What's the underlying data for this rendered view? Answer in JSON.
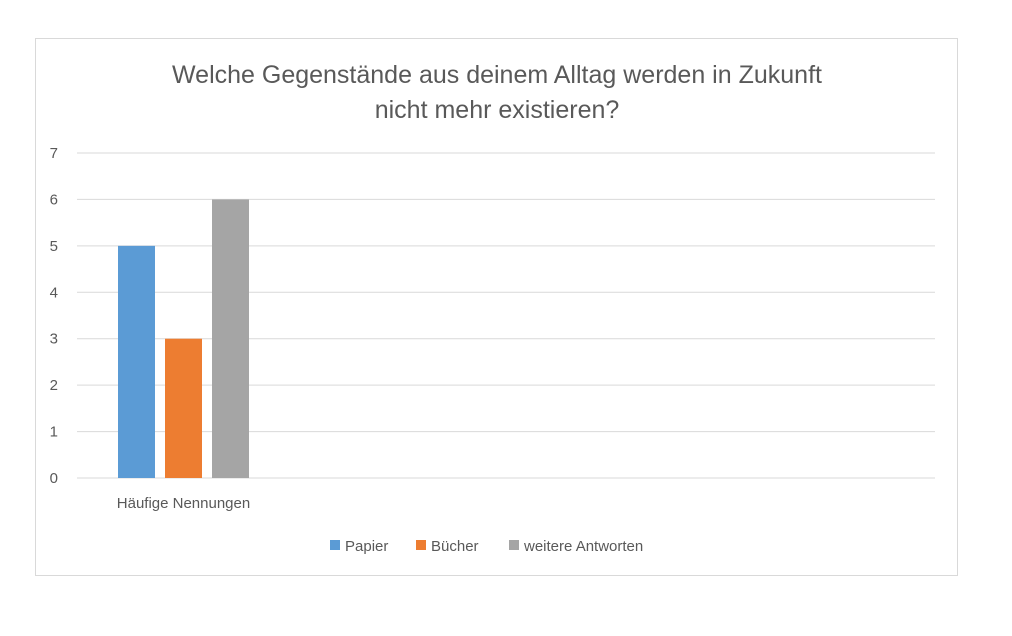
{
  "chart_data": {
    "type": "bar",
    "title_lines": [
      "Welche Gegenstände aus deinem Alltag werden in Zukunft",
      "nicht mehr existieren?"
    ],
    "categories": [
      "Häufige Nennungen"
    ],
    "series": [
      {
        "name": "Papier",
        "values": [
          5
        ],
        "color": "#5b9bd5"
      },
      {
        "name": "Bücher",
        "values": [
          3
        ],
        "color": "#ed7d31"
      },
      {
        "name": "weitere Antworten",
        "values": [
          6
        ],
        "color": "#a5a5a5"
      }
    ],
    "ylim": [
      0,
      7
    ],
    "yticks": [
      "0",
      "1",
      "2",
      "3",
      "4",
      "5",
      "6",
      "7"
    ],
    "grid": true,
    "legend_position": "bottom",
    "gridline_color": "#d9d9d9"
  }
}
